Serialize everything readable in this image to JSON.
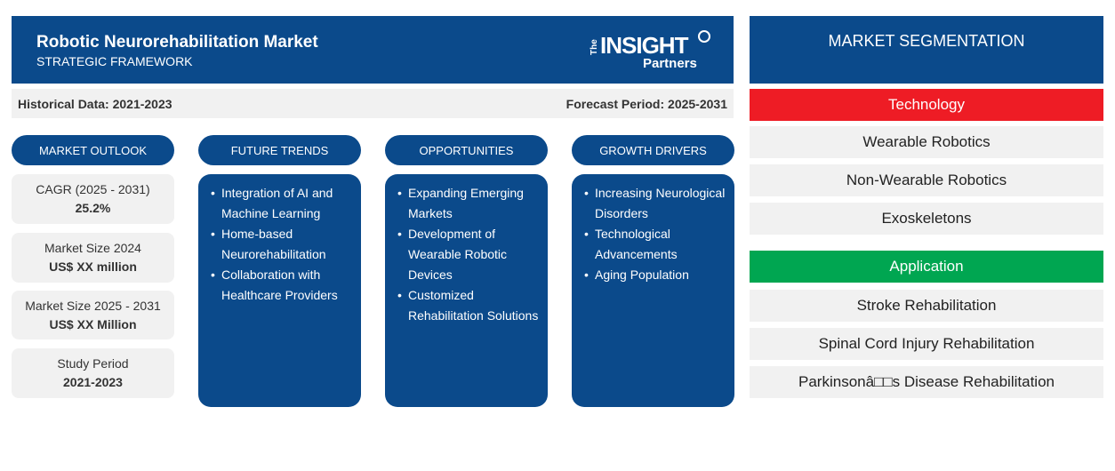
{
  "header": {
    "title": "Robotic Neurorehabilitation Market",
    "subtitle": "STRATEGIC FRAMEWORK",
    "logo": {
      "the": "The",
      "main": "INSIGHT",
      "sub": "Partners"
    }
  },
  "bar": {
    "historical": "Historical Data: 2021-2023",
    "forecast": "Forecast Period: 2025-2031"
  },
  "outlook": {
    "label": "MARKET OUTLOOK",
    "cards": [
      {
        "label": "CAGR (2025 - 2031)",
        "value": "25.2%"
      },
      {
        "label": "Market Size 2024",
        "value": "US$ XX million"
      },
      {
        "label": "Market Size 2025 - 2031",
        "value": "US$ XX Million"
      },
      {
        "label": "Study Period",
        "value": "2021-2023"
      }
    ]
  },
  "columns": [
    {
      "label": "FUTURE TRENDS",
      "items": [
        "Integration of AI and Machine Learning",
        "Home-based Neurorehabilitation",
        "Collaboration with Healthcare Providers"
      ]
    },
    {
      "label": "OPPORTUNITIES",
      "items": [
        "Expanding Emerging Markets",
        "Development of Wearable Robotic Devices",
        "Customized Rehabilitation Solutions"
      ]
    },
    {
      "label": "GROWTH DRIVERS",
      "items": [
        "Increasing Neurological Disorders",
        "Technological Advancements",
        "Aging Population"
      ]
    }
  ],
  "segmentation": {
    "title": "MARKET SEGMENTATION",
    "groups": [
      {
        "label": "Technology",
        "color": "#ee1c25",
        "items": [
          "Wearable Robotics",
          "Non-Wearable Robotics",
          "Exoskeletons"
        ]
      },
      {
        "label": "Application",
        "color": "#00a651",
        "items": [
          "Stroke Rehabilitation",
          "Spinal Cord Injury Rehabilitation",
          "Parkinsonâ□□s Disease Rehabilitation"
        ]
      }
    ]
  },
  "colors": {
    "primary": "#0b4a8b",
    "panel": "#f1f1f1"
  }
}
